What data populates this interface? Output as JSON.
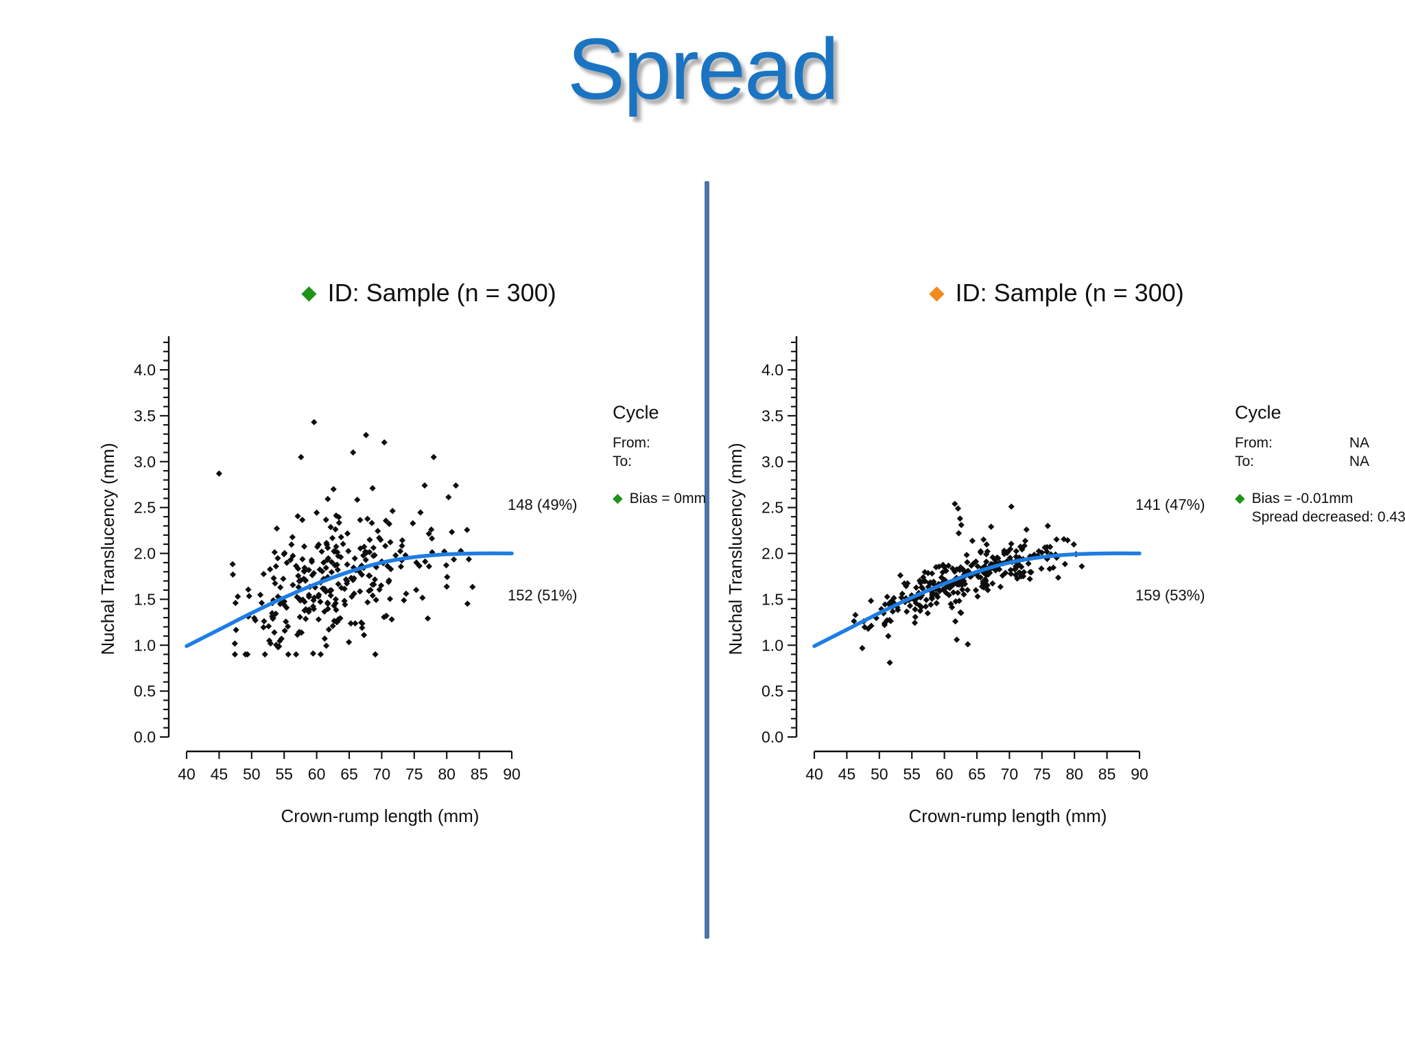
{
  "title": "Spread",
  "colors": {
    "title_blue": "#1b74c2",
    "divider_blue": "#4a74ab",
    "count_blue": "#17549d",
    "curve_blue": "#1e7de2",
    "series_green": "#1e9418",
    "series_orange": "#f28a1e",
    "point_black": "#0d0d0d"
  },
  "chart_data": [
    {
      "type": "scatter",
      "title": "ID: Sample (n = 300)",
      "n": 300,
      "series_marker": "diamond",
      "series_color": "#1e9418",
      "xlabel": "Crown-rump length (mm)",
      "ylabel": "Nuchal Translucency (mm)",
      "xlim": [
        40,
        90
      ],
      "ylim": [
        0,
        4.4
      ],
      "xticks": [
        40,
        45,
        50,
        55,
        60,
        65,
        70,
        75,
        80,
        85,
        90
      ],
      "yticks": [
        "0.0",
        "0.5",
        "1.0",
        "1.5",
        "2.0",
        "2.5",
        "3.0",
        "3.5",
        "4.0"
      ],
      "y_minor_step": 0.1,
      "grid": false,
      "legend_position": "top-center",
      "trend": {
        "color": "#1e7de2",
        "points": [
          [
            40,
            0.99
          ],
          [
            45,
            1.17
          ],
          [
            50,
            1.35
          ],
          [
            55,
            1.52
          ],
          [
            60,
            1.67
          ],
          [
            65,
            1.8
          ],
          [
            70,
            1.9
          ],
          [
            75,
            1.96
          ],
          [
            80,
            1.99
          ],
          [
            85,
            2.0
          ],
          [
            90,
            2.0
          ]
        ]
      },
      "counts": {
        "above_curve": "148 (49%)",
        "below_curve": "152 (51%)"
      },
      "scatter": {
        "seed": 20481,
        "n": 290,
        "x_mean": 62.5,
        "x_sd": 8.4,
        "x_min": 46,
        "x_max": 84,
        "resid_sd": 0.34,
        "y_min": 0.9,
        "y_max": 3.45
      },
      "outliers": [
        [
          45,
          2.87
        ],
        [
          59.6,
          3.43
        ],
        [
          67.6,
          3.29
        ],
        [
          70.4,
          3.21
        ],
        [
          65.6,
          3.1
        ],
        [
          57.6,
          3.05
        ],
        [
          78,
          3.05
        ],
        [
          62.6,
          2.7
        ],
        [
          81.4,
          2.74
        ],
        [
          76.6,
          2.74
        ]
      ],
      "legend": {
        "heading": "Cycle",
        "from_label": "From:",
        "from_value": "",
        "to_label": "To:",
        "to_value": "",
        "bias": "Bias = 0mm",
        "spread": ""
      }
    },
    {
      "type": "scatter",
      "title": "ID: Sample (n = 300)",
      "n": 300,
      "series_marker": "diamond",
      "series_color": "#f28a1e",
      "xlabel": "Crown-rump length (mm)",
      "ylabel": "Nuchal Translucency (mm)",
      "xlim": [
        40,
        90
      ],
      "ylim": [
        0,
        4.4
      ],
      "xticks": [
        40,
        45,
        50,
        55,
        60,
        65,
        70,
        75,
        80,
        85,
        90
      ],
      "yticks": [
        "0.0",
        "0.5",
        "1.0",
        "1.5",
        "2.0",
        "2.5",
        "3.0",
        "3.5",
        "4.0"
      ],
      "y_minor_step": 0.1,
      "grid": false,
      "legend_position": "top-center",
      "trend": {
        "color": "#1e7de2",
        "points": [
          [
            40,
            0.99
          ],
          [
            45,
            1.17
          ],
          [
            50,
            1.35
          ],
          [
            55,
            1.52
          ],
          [
            60,
            1.67
          ],
          [
            65,
            1.8
          ],
          [
            70,
            1.9
          ],
          [
            75,
            1.96
          ],
          [
            80,
            1.99
          ],
          [
            85,
            2.0
          ],
          [
            90,
            2.0
          ]
        ]
      },
      "counts": {
        "above_curve": "141 (47%)",
        "below_curve": "159 (53%)"
      },
      "scatter": {
        "seed": 7707,
        "n": 290,
        "x_mean": 63,
        "x_sd": 8.6,
        "x_min": 45.5,
        "x_max": 84,
        "resid_sd": 0.13,
        "y_min": 0.7,
        "y_max": 2.6
      },
      "outliers": [
        [
          61.6,
          2.54
        ],
        [
          62.1,
          2.49
        ],
        [
          62.4,
          2.38
        ],
        [
          62.6,
          2.31
        ],
        [
          62.2,
          2.22
        ],
        [
          70.3,
          2.51
        ],
        [
          75.9,
          2.3
        ],
        [
          61.9,
          1.06
        ],
        [
          63.6,
          1.01
        ],
        [
          51.6,
          0.81
        ]
      ],
      "legend": {
        "heading": "Cycle",
        "from_label": "From:",
        "from_value": "NA",
        "to_label": "To:",
        "to_value": "NA",
        "bias": "Bias = -0.01mm",
        "spread": "Spread decreased: 0.43"
      }
    }
  ]
}
